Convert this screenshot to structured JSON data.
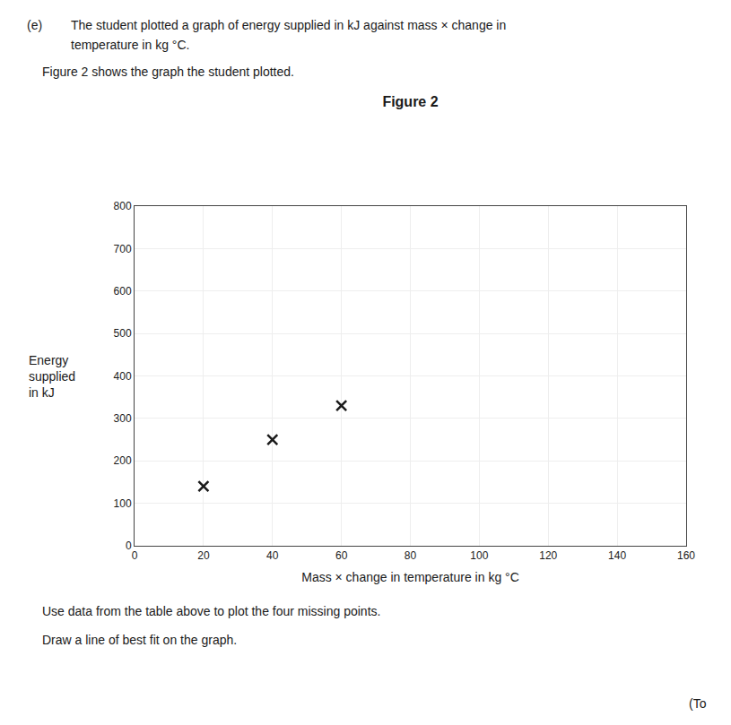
{
  "chart_data": {
    "type": "scatter",
    "title": "Figure 2",
    "xlabel": "Mass × change in temperature in kg °C",
    "ylabel": [
      "Energy",
      "supplied",
      "in kJ"
    ],
    "x": [
      20,
      40,
      60
    ],
    "values": [
      140,
      250,
      330
    ],
    "color": "#1a1a1a",
    "marker": "x",
    "xlim": [
      0,
      160
    ],
    "ylim": [
      0,
      800
    ],
    "xticks": [
      0,
      20,
      40,
      60,
      80,
      100,
      120,
      140,
      160
    ],
    "yticks": [
      0,
      100,
      200,
      300,
      400,
      500,
      600,
      700,
      800
    ],
    "grid": true,
    "annotations": [
      "(e)",
      "The student plotted a graph of energy supplied in kJ against mass × change in",
      "temperature in kg °C.",
      "Figure 2 shows the graph the student plotted.",
      "Use data from the table above to plot the four missing points.",
      "Draw a line of best fit on the graph.",
      "(To"
    ]
  }
}
